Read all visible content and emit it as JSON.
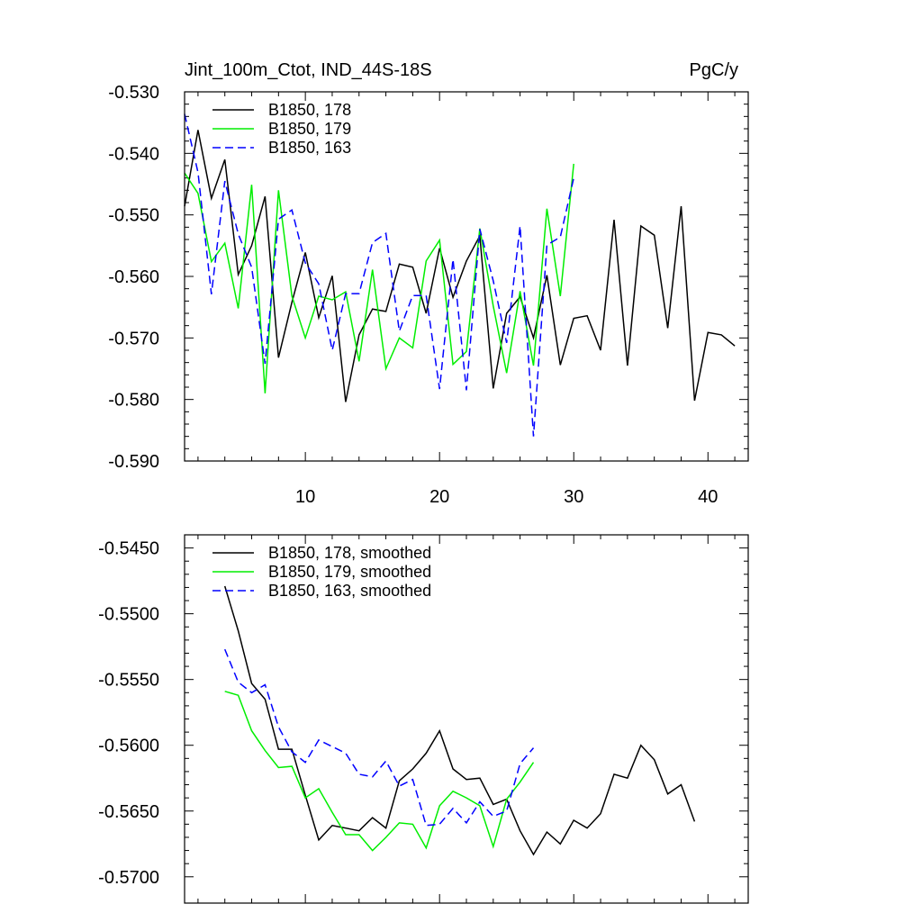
{
  "chart_data": [
    {
      "type": "line",
      "title": "Jint_100m_Ctot, IND_44S-18S",
      "units": "PgC/y",
      "xlabel": "",
      "ylabel": "",
      "xlim": [
        1,
        43
      ],
      "ylim": [
        -0.59,
        -0.53
      ],
      "x_ticks": [
        10,
        20,
        30,
        40
      ],
      "x_tick_labels": [
        "10",
        "20",
        "30",
        "40"
      ],
      "y_ticks": [
        -0.59,
        -0.58,
        -0.57,
        -0.56,
        -0.55,
        -0.54,
        -0.53
      ],
      "y_tick_labels": [
        "-0.590",
        "-0.580",
        "-0.570",
        "-0.560",
        "-0.550",
        "-0.540",
        "-0.530"
      ],
      "legend_position": "top-left",
      "series": [
        {
          "name": "B1850, 178",
          "color": "#000000",
          "dash": "solid",
          "x": [
            1,
            2,
            3,
            4,
            5,
            6,
            7,
            8,
            9,
            10,
            11,
            12,
            13,
            14,
            15,
            16,
            17,
            18,
            19,
            20,
            21,
            22,
            23,
            24,
            25,
            26,
            27,
            28,
            29,
            30,
            31,
            32,
            33,
            34,
            35,
            36,
            37,
            38,
            39,
            40,
            41,
            42
          ],
          "values": [
            -0.5486,
            -0.5362,
            -0.5473,
            -0.541,
            -0.5597,
            -0.555,
            -0.547,
            -0.5732,
            -0.5642,
            -0.5561,
            -0.5667,
            -0.5599,
            -0.5804,
            -0.5695,
            -0.5653,
            -0.5657,
            -0.558,
            -0.5585,
            -0.566,
            -0.5554,
            -0.5634,
            -0.5575,
            -0.5534,
            -0.5782,
            -0.566,
            -0.5633,
            -0.57,
            -0.5598,
            -0.5744,
            -0.5668,
            -0.5664,
            -0.572,
            -0.5508,
            -0.5745,
            -0.5518,
            -0.5533,
            -0.5684,
            -0.5486,
            -0.5802,
            -0.5691,
            -0.5695,
            -0.5713
          ]
        },
        {
          "name": "B1850, 179",
          "color": "#00ee00",
          "dash": "solid",
          "x": [
            1,
            2,
            3,
            4,
            5,
            6,
            7,
            8,
            9,
            10,
            11,
            12,
            13,
            14,
            15,
            16,
            17,
            18,
            19,
            20,
            21,
            22,
            23,
            24,
            25,
            26,
            27,
            28,
            29,
            30
          ],
          "values": [
            -0.5432,
            -0.5465,
            -0.5576,
            -0.5546,
            -0.5652,
            -0.5451,
            -0.579,
            -0.546,
            -0.5632,
            -0.57,
            -0.5632,
            -0.5638,
            -0.5625,
            -0.5738,
            -0.5589,
            -0.575,
            -0.57,
            -0.5716,
            -0.5575,
            -0.5541,
            -0.5743,
            -0.5722,
            -0.5522,
            -0.5648,
            -0.5757,
            -0.5624,
            -0.5745,
            -0.549,
            -0.5632,
            -0.5417
          ]
        },
        {
          "name": "B1850, 163",
          "color": "#0000ff",
          "dash": "dashed",
          "x": [
            1,
            2,
            3,
            4,
            5,
            6,
            7,
            8,
            9,
            10,
            11,
            12,
            13,
            14,
            15,
            16,
            17,
            18,
            19,
            20,
            21,
            22,
            23,
            24,
            25,
            26,
            27,
            28,
            29,
            30
          ],
          "values": [
            -0.5336,
            -0.5431,
            -0.5629,
            -0.5445,
            -0.5531,
            -0.5585,
            -0.5742,
            -0.5507,
            -0.5492,
            -0.5578,
            -0.5612,
            -0.572,
            -0.5628,
            -0.5628,
            -0.5545,
            -0.553,
            -0.5689,
            -0.5631,
            -0.5631,
            -0.5783,
            -0.5572,
            -0.5785,
            -0.5523,
            -0.5607,
            -0.5708,
            -0.5518,
            -0.586,
            -0.5549,
            -0.5536,
            -0.544
          ]
        }
      ]
    },
    {
      "type": "line",
      "title": "",
      "xlabel": "",
      "ylabel": "",
      "xlim": [
        1,
        43
      ],
      "ylim": [
        -0.572,
        -0.544
      ],
      "x_ticks": [
        10,
        20,
        30,
        40
      ],
      "y_ticks": [
        -0.57,
        -0.565,
        -0.56,
        -0.555,
        -0.55,
        -0.545
      ],
      "y_tick_labels": [
        "-0.5700",
        "-0.5650",
        "-0.5600",
        "-0.5550",
        "-0.5500",
        "-0.5450"
      ],
      "legend_position": "top-left",
      "series": [
        {
          "name": "B1850, 178, smoothed",
          "color": "#000000",
          "dash": "solid",
          "x": [
            4,
            5,
            6,
            7,
            8,
            9,
            10,
            11,
            12,
            13,
            14,
            15,
            16,
            17,
            18,
            19,
            20,
            21,
            22,
            23,
            24,
            25,
            26,
            27,
            28,
            29,
            30,
            31,
            32,
            33,
            34,
            35,
            36,
            37,
            38,
            39
          ],
          "values": [
            -0.5479,
            -0.5513,
            -0.5553,
            -0.5565,
            -0.5603,
            -0.5603,
            -0.5638,
            -0.5672,
            -0.5661,
            -0.5663,
            -0.5665,
            -0.5655,
            -0.5663,
            -0.5627,
            -0.5618,
            -0.5606,
            -0.5589,
            -0.5618,
            -0.5626,
            -0.5625,
            -0.5645,
            -0.5641,
            -0.5665,
            -0.5683,
            -0.5666,
            -0.5675,
            -0.5657,
            -0.5663,
            -0.5652,
            -0.5622,
            -0.5625,
            -0.56,
            -0.5611,
            -0.5637,
            -0.563,
            -0.5658
          ]
        },
        {
          "name": "B1850, 179, smoothed",
          "color": "#00ee00",
          "dash": "solid",
          "x": [
            4,
            5,
            6,
            7,
            8,
            9,
            10,
            11,
            12,
            13,
            14,
            15,
            16,
            17,
            18,
            19,
            20,
            21,
            22,
            23,
            24,
            25,
            26,
            27
          ],
          "values": [
            -0.5559,
            -0.5562,
            -0.5589,
            -0.5604,
            -0.5617,
            -0.5616,
            -0.564,
            -0.5633,
            -0.5651,
            -0.5668,
            -0.5668,
            -0.568,
            -0.567,
            -0.5659,
            -0.566,
            -0.5678,
            -0.5646,
            -0.5635,
            -0.564,
            -0.5646,
            -0.5677,
            -0.5641,
            -0.5628,
            -0.5613
          ]
        },
        {
          "name": "B1850, 163, smoothed",
          "color": "#0000ff",
          "dash": "dashed",
          "x": [
            4,
            5,
            6,
            7,
            8,
            9,
            10,
            11,
            12,
            13,
            14,
            15,
            16,
            17,
            18,
            19,
            20,
            21,
            22,
            23,
            24,
            25,
            26,
            27
          ],
          "values": [
            -0.5527,
            -0.5552,
            -0.556,
            -0.5554,
            -0.5586,
            -0.5605,
            -0.5613,
            -0.5596,
            -0.5601,
            -0.5606,
            -0.5622,
            -0.5624,
            -0.5612,
            -0.5631,
            -0.5626,
            -0.5661,
            -0.566,
            -0.5648,
            -0.5659,
            -0.5643,
            -0.5654,
            -0.565,
            -0.5614,
            -0.5602
          ]
        }
      ]
    }
  ]
}
